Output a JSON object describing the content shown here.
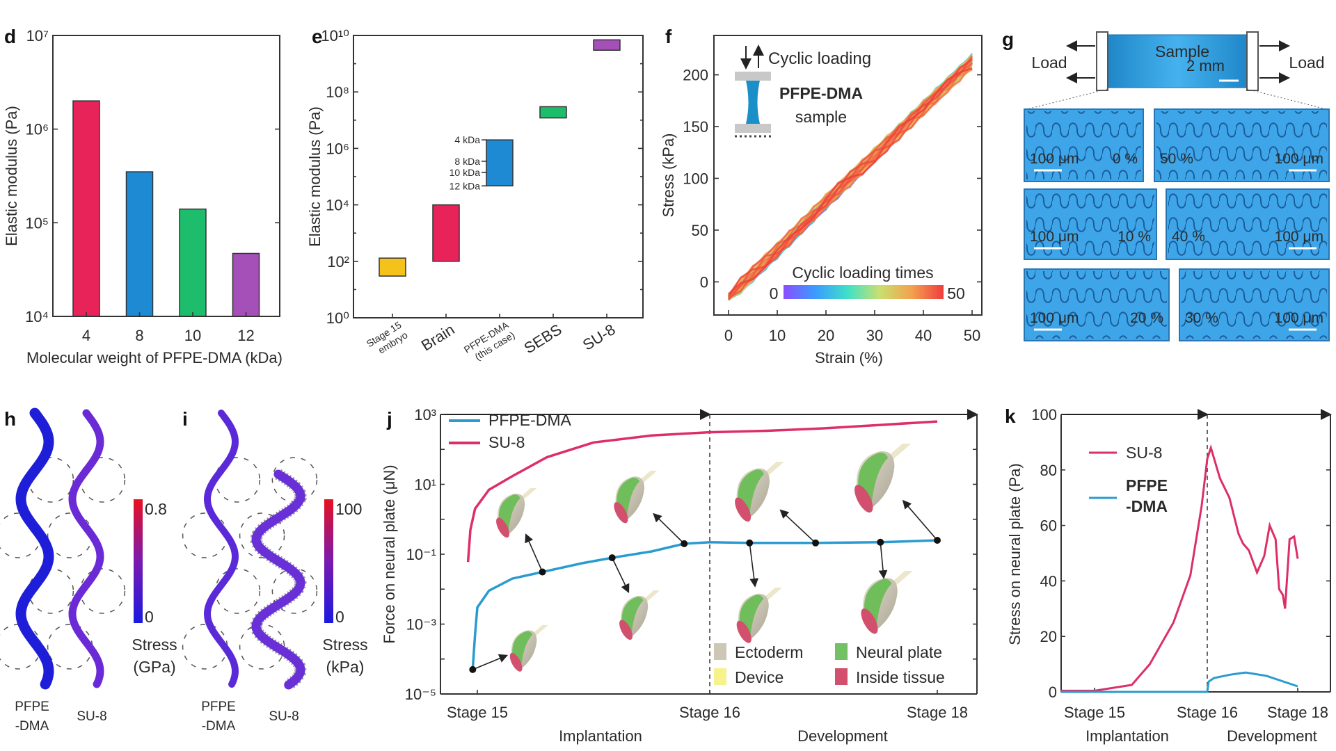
{
  "panels": {
    "d": "d",
    "e": "e",
    "f": "f",
    "g": "g",
    "h": "h",
    "i": "i",
    "j": "j",
    "k": "k"
  },
  "colors": {
    "pink": "#e8235a",
    "blue": "#1e8ad3",
    "green": "#1dbd6c",
    "purple": "#a450b8",
    "yellow": "#f5c21b",
    "pfpe_line": "#2a9bd0",
    "su8_line": "#dc2f66"
  },
  "chart_data": [
    {
      "panel": "d",
      "type": "bar",
      "categories": [
        "4",
        "8",
        "10",
        "12"
      ],
      "values": [
        2000000,
        350000,
        140000,
        47000
      ],
      "bar_colors": [
        "#e8235a",
        "#1e8ad3",
        "#1dbd6c",
        "#a450b8"
      ],
      "xlabel": "Molecular weight of PFPE-DMA (kDa)",
      "ylabel": "Elastic modulus (Pa)",
      "yscale": "log",
      "ylim": [
        10000,
        10000000
      ],
      "yticks": [
        {
          "value": 10000,
          "label": "10⁴"
        },
        {
          "value": 100000,
          "label": "10⁵"
        },
        {
          "value": 1000000,
          "label": "10⁶"
        },
        {
          "value": 10000000,
          "label": "10⁷"
        }
      ],
      "grid": false
    },
    {
      "panel": "e",
      "type": "bar",
      "subtype": "floating-range",
      "categories": [
        {
          "lines": [
            "Stage 15",
            "embryo"
          ],
          "small": true
        },
        {
          "lines": [
            "Brain"
          ],
          "small": false
        },
        {
          "lines": [
            "PFPE-DMA",
            "(this case)"
          ],
          "small": true
        },
        {
          "lines": [
            "SEBS"
          ],
          "small": false
        },
        {
          "lines": [
            "SU-8"
          ],
          "small": false
        }
      ],
      "ranges": [
        [
          30,
          130
        ],
        [
          100,
          10000
        ],
        [
          47000,
          2000000
        ],
        [
          12000000,
          30000000
        ],
        [
          3000000000,
          7000000000
        ]
      ],
      "bar_colors": [
        "#f5c21b",
        "#e8235a",
        "#1e8ad3",
        "#1dbd6c",
        "#a450b8"
      ],
      "annotations": [
        {
          "label": "4 kDa",
          "value": 2000000
        },
        {
          "label": "8 kDa",
          "value": 350000
        },
        {
          "label": "10 kDa",
          "value": 140000
        },
        {
          "label": "12 kDa",
          "value": 47000
        }
      ],
      "ylabel": "Elastic modulus (Pa)",
      "yscale": "log",
      "ylim": [
        1,
        10000000000
      ],
      "yticks": [
        {
          "value": 1,
          "label": "10⁰"
        },
        {
          "value": 100,
          "label": "10²"
        },
        {
          "value": 10000,
          "label": "10⁴"
        },
        {
          "value": 1000000,
          "label": "10⁶"
        },
        {
          "value": 100000000,
          "label": "10⁸"
        },
        {
          "value": 10000000000,
          "label": "10¹⁰"
        }
      ],
      "grid": false
    },
    {
      "panel": "f",
      "type": "line",
      "xlabel": "Strain (%)",
      "ylabel": "Stress (kPa)",
      "xlim": [
        -3,
        52
      ],
      "ylim": [
        -32,
        238
      ],
      "xticks": [
        0,
        10,
        20,
        30,
        40,
        50
      ],
      "yticks": [
        0,
        50,
        100,
        150,
        200
      ],
      "cycles": 50,
      "mean_curve": {
        "x": [
          0,
          10,
          20,
          30,
          40,
          50
        ],
        "y": [
          -15,
          30,
          77,
          122,
          168,
          213
        ]
      },
      "inset": {
        "loading_label": "Cyclic loading",
        "sample_line1": "PFPE-DMA",
        "sample_line2": "sample"
      },
      "colorbar": {
        "label": "Cyclic loading times",
        "min": "0",
        "max": "50",
        "colors": [
          "#8a4dff",
          "#3a9cff",
          "#3fe0c8",
          "#c8e070",
          "#f3a24f",
          "#ef3d3d"
        ]
      },
      "grid": false
    },
    {
      "panel": "j",
      "type": "line",
      "ylabel": "Force on neural plate (μN)",
      "yscale": "log",
      "ylim": [
        1e-05,
        1000
      ],
      "yticks": [
        {
          "value": 1e-05,
          "label": "10⁻⁵"
        },
        {
          "value": 0.001,
          "label": "10⁻³"
        },
        {
          "value": 0.1,
          "label": "10⁻¹"
        },
        {
          "value": 10,
          "label": "10¹"
        },
        {
          "value": 1000,
          "label": "10³"
        }
      ],
      "xticks": [
        {
          "value": 15,
          "label": "Stage 15"
        },
        {
          "value": 16,
          "label": "Stage 16"
        },
        {
          "value": 18,
          "label": "Stage 18"
        }
      ],
      "phases": [
        "Implantation",
        "Development"
      ],
      "legend_position": "top-left",
      "series": [
        {
          "name": "PFPE-DMA",
          "color": "#2a9bd0",
          "x": [
            14.98,
            14.99,
            15.0,
            15.05,
            15.15,
            15.28,
            15.45,
            15.58,
            15.75,
            15.89,
            16.0,
            16.35,
            16.93,
            17.5,
            18
          ],
          "y": [
            5e-05,
            0.0005,
            0.003,
            0.009,
            0.02,
            0.031,
            0.055,
            0.079,
            0.12,
            0.2,
            0.22,
            0.21,
            0.21,
            0.22,
            0.25
          ],
          "markers": [
            [
              14.98,
              5e-05
            ],
            [
              15.28,
              0.031
            ],
            [
              15.58,
              0.079
            ],
            [
              15.89,
              0.2
            ],
            [
              16.35,
              0.21
            ],
            [
              16.93,
              0.21
            ],
            [
              17.5,
              0.22
            ],
            [
              18,
              0.25
            ]
          ]
        },
        {
          "name": "SU-8",
          "color": "#dc2f66",
          "x": [
            14.96,
            14.97,
            14.99,
            15.05,
            15.15,
            15.3,
            15.5,
            15.75,
            16,
            16.5,
            17,
            17.5,
            18
          ],
          "y": [
            0.06,
            0.5,
            2,
            7,
            17,
            60,
            158,
            250,
            309,
            340,
            400,
            500,
            630
          ]
        }
      ],
      "tissue_legend": [
        {
          "label": "Ectoderm",
          "color": "#cdc7b6"
        },
        {
          "label": "Neural plate",
          "color": "#74c064"
        },
        {
          "label": "Device",
          "color": "#f6f28c"
        },
        {
          "label": "Inside tissue",
          "color": "#d2506e"
        }
      ]
    },
    {
      "panel": "k",
      "type": "line",
      "ylabel": "Stress on neural plate (Pa)",
      "ylim": [
        0,
        100
      ],
      "yticks": [
        0,
        20,
        40,
        60,
        80,
        100
      ],
      "xticks": [
        {
          "value": 15,
          "label": "Stage 15"
        },
        {
          "value": 16,
          "label": "Stage 16"
        },
        {
          "value": 18,
          "label": "Stage 18"
        }
      ],
      "phases": [
        "Implantation",
        "Development"
      ],
      "legend_position": "top-left",
      "series": [
        {
          "name": "SU-8",
          "color": "#dc2f66",
          "x": [
            14.7,
            15.0,
            15.33,
            15.49,
            15.7,
            15.85,
            15.95,
            16.0,
            16.08,
            16.28,
            16.49,
            16.69,
            16.79,
            16.92,
            17.1,
            17.26,
            17.38,
            17.51,
            17.59,
            17.67,
            17.72,
            17.82,
            17.92,
            18.0
          ],
          "y": [
            0.4,
            0.4,
            2.5,
            10,
            25,
            42,
            67,
            84,
            88,
            77,
            70,
            57,
            53.5,
            51,
            43,
            49,
            60,
            55,
            37,
            35,
            30,
            55,
            56,
            48
          ]
        },
        {
          "name": "PFPE\n-DMA",
          "color": "#2a9bd0",
          "x": [
            14.7,
            16.0,
            16.03,
            16.15,
            16.5,
            16.85,
            17.31,
            18.0
          ],
          "y": [
            0,
            0,
            3.7,
            5,
            6.2,
            7,
            5.8,
            2
          ]
        }
      ]
    }
  ],
  "panel_g": {
    "load_left": "Load",
    "load_right": "Load",
    "sample_label": "Sample",
    "scale_label": "2 mm",
    "tiles": [
      {
        "scale": "100 μm",
        "strain": "0 %",
        "strain_first": false
      },
      {
        "scale": "100 μm",
        "strain": "50 %",
        "strain_first": true
      },
      {
        "scale": "100 μm",
        "strain": "10 %",
        "strain_first": false
      },
      {
        "scale": "100 μm",
        "strain": "40 %",
        "strain_first": true
      },
      {
        "scale": "100 μm",
        "strain": "20 %",
        "strain_first": false
      },
      {
        "scale": "100 μm",
        "strain": "30 %",
        "strain_first": true
      }
    ]
  },
  "panel_h": {
    "cb_max": "0.8",
    "cb_min": "0",
    "cb_label1": "Stress",
    "cb_label2": "(GPa)",
    "left_label1": "PFPE",
    "left_label2": "-DMA",
    "right_label": "SU-8"
  },
  "panel_i": {
    "cb_max": "100",
    "cb_min": "0",
    "cb_label1": "Stress",
    "cb_label2": "(kPa)",
    "left_label1": "PFPE",
    "left_label2": "-DMA",
    "right_label": "SU-8"
  }
}
